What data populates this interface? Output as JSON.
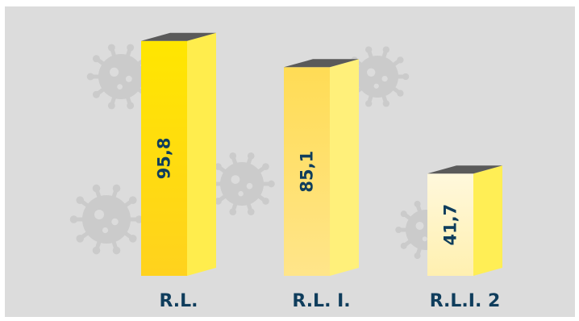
{
  "colors": {
    "background": "#dcdcdc",
    "outer_frame": "#ffffff",
    "virus_decoration": "#cbcbcb",
    "label_color": "#0f3d5c",
    "bar_top": "#5a5a5a",
    "bars": [
      {
        "front_top": "#ffe600",
        "front_bottom": "#ffd21e",
        "side": "#ffed4d"
      },
      {
        "front_top": "#ffdc55",
        "front_bottom": "#ffe58a",
        "side": "#fff07a"
      },
      {
        "front_top": "#fff8dc",
        "front_bottom": "#fff0b0",
        "side": "#ffee55"
      }
    ]
  },
  "decorations": [
    "virus-icon",
    "virus-icon",
    "virus-icon",
    "virus-icon",
    "virus-icon",
    "virus-icon"
  ],
  "chart_data": {
    "type": "bar",
    "style": "3d-columns",
    "categories": [
      "R.L.",
      "R.L. I.",
      "R.L.I. 2"
    ],
    "values": [
      95.8,
      85.1,
      41.7
    ],
    "value_labels": [
      "95,8",
      "85,1",
      "41,7"
    ],
    "ylim": [
      0,
      100
    ],
    "grid": false,
    "legend": "none"
  }
}
